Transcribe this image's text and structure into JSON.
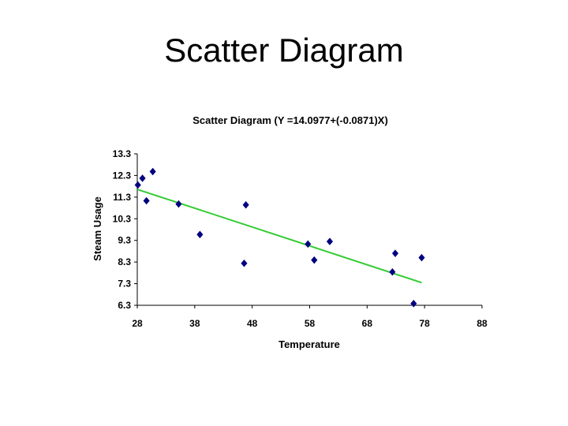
{
  "slide": {
    "title": "Scatter Diagram"
  },
  "chart_data": {
    "type": "scatter",
    "title": "Scatter Diagram (Y =14.0977+(-0.0871)X)",
    "xlabel": "Temperature",
    "ylabel": "Steam Usage",
    "xlim": [
      28,
      88
    ],
    "ylim": [
      6.3,
      13.3
    ],
    "xticks": [
      "28",
      "38",
      "48",
      "58",
      "68",
      "78",
      "88"
    ],
    "yticks": [
      "6.3",
      "7.3",
      "8.3",
      "9.3",
      "10.3",
      "11.3",
      "12.3",
      "13.3"
    ],
    "grid": false,
    "colors": {
      "points": "#000080",
      "trendline": "#33cc33",
      "axis": "#000000"
    },
    "series": [
      {
        "x": [
          28.1,
          28.9,
          29.6,
          30.7,
          35.2,
          38.9,
          46.6,
          46.9,
          57.7,
          58.8,
          61.5,
          72.4,
          72.9,
          76.1,
          77.5
        ],
        "y": [
          11.86,
          12.17,
          11.13,
          12.48,
          10.98,
          9.57,
          8.24,
          10.94,
          9.13,
          8.39,
          9.25,
          7.84,
          8.7,
          6.38,
          8.5
        ]
      }
    ],
    "trendline": {
      "intercept": 14.0977,
      "slope": -0.0871,
      "x_range": [
        28,
        77.5
      ]
    }
  }
}
